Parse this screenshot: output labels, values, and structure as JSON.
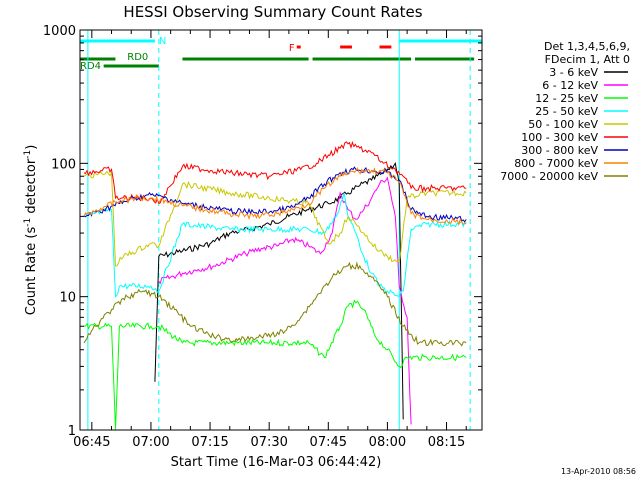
{
  "chart_data": {
    "type": "line",
    "title": "HESSI Observing Summary Count Rates",
    "xlabel": "Start Time (16-Mar-03 06:44:42)",
    "ylabel": "Count Rate (s",
    "ylabel_sup": "-1",
    "ylabel_tail": " detector",
    "ylabel_sup2": "-1",
    "ylabel_close": ")",
    "y_scale": "log",
    "ylim": [
      1,
      1000
    ],
    "xlim": [
      "06:42",
      "08:24"
    ],
    "x_ticks": [
      "06:45",
      "07:00",
      "07:15",
      "07:30",
      "07:45",
      "08:00",
      "08:15"
    ],
    "y_ticks": [
      "1",
      "10",
      "100",
      "1000"
    ],
    "legend_position": "right",
    "legend_header": [
      "Det 1,3,4,5,6,9,",
      "FDecim 1, Att 0"
    ],
    "timestamp": "13-Apr-2010 08:56",
    "flags": [
      {
        "label": "N",
        "color": "#00ffff",
        "segments": [
          [
            "06:42",
            "07:01"
          ],
          [
            "08:03",
            "08:24"
          ]
        ]
      },
      {
        "label": "RD0",
        "color": "#008000",
        "segments": [
          [
            "06:42",
            "06:51"
          ],
          [
            "07:08",
            "07:40"
          ],
          [
            "07:41",
            "08:06"
          ],
          [
            "08:07",
            "08:22"
          ]
        ]
      },
      {
        "label": "RD4",
        "color": "#008000",
        "segments": [
          [
            "06:48",
            "07:02"
          ]
        ]
      },
      {
        "label": "F",
        "color": "#ff0000",
        "segments": [
          [
            "07:37",
            "07:38"
          ],
          [
            "07:48",
            "07:51"
          ],
          [
            "07:58",
            "08:01"
          ]
        ]
      }
    ],
    "vlines": [
      {
        "x": "06:44",
        "color": "#00ffff",
        "style": "solid"
      },
      {
        "x": "07:02",
        "color": "#00ffff",
        "style": "dashed"
      },
      {
        "x": "08:03",
        "color": "#00ffff",
        "style": "solid"
      },
      {
        "x": "08:21",
        "color": "#00ffff",
        "style": "dashed"
      }
    ],
    "series": [
      {
        "name": "3 - 6 keV",
        "color": "#000000",
        "points": [
          [
            "07:01",
            2.3
          ],
          [
            "07:02",
            20
          ],
          [
            "07:08",
            22
          ],
          [
            "07:15",
            25
          ],
          [
            "07:20",
            30
          ],
          [
            "07:25",
            32
          ],
          [
            "07:30",
            35
          ],
          [
            "07:35",
            40
          ],
          [
            "07:40",
            45
          ],
          [
            "07:45",
            50
          ],
          [
            "07:48",
            55
          ],
          [
            "07:50",
            60
          ],
          [
            "07:53",
            68
          ],
          [
            "07:56",
            75
          ],
          [
            "07:59",
            85
          ],
          [
            "08:02",
            100
          ],
          [
            "08:03",
            70
          ],
          [
            "08:04",
            1.2
          ]
        ]
      },
      {
        "name": "6 - 12 keV",
        "color": "#ff00ff",
        "points": [
          [
            "07:02",
            13
          ],
          [
            "07:08",
            15
          ],
          [
            "07:12",
            16
          ],
          [
            "07:16",
            17
          ],
          [
            "07:20",
            19
          ],
          [
            "07:24",
            21
          ],
          [
            "07:28",
            23
          ],
          [
            "07:32",
            24
          ],
          [
            "07:36",
            27
          ],
          [
            "07:40",
            24
          ],
          [
            "07:43",
            21
          ],
          [
            "07:46",
            30
          ],
          [
            "07:48",
            60
          ],
          [
            "07:50",
            45
          ],
          [
            "07:52",
            38
          ],
          [
            "07:54",
            45
          ],
          [
            "07:56",
            55
          ],
          [
            "07:58",
            70
          ],
          [
            "08:00",
            78
          ],
          [
            "08:02",
            40
          ],
          [
            "08:03",
            12
          ],
          [
            "08:05",
            7
          ],
          [
            "08:06",
            1.1
          ]
        ]
      },
      {
        "name": "12 - 25 keV",
        "color": "#00ff00",
        "points": [
          [
            "06:43",
            6
          ],
          [
            "06:50",
            6
          ],
          [
            "06:51",
            1
          ],
          [
            "06:52",
            6
          ],
          [
            "07:00",
            6
          ],
          [
            "07:02",
            6
          ],
          [
            "07:08",
            4.5
          ],
          [
            "07:20",
            4.5
          ],
          [
            "07:30",
            4.5
          ],
          [
            "07:40",
            4.5
          ],
          [
            "07:44",
            3.5
          ],
          [
            "07:48",
            6
          ],
          [
            "07:50",
            8.5
          ],
          [
            "07:52",
            9
          ],
          [
            "07:54",
            8
          ],
          [
            "07:57",
            5
          ],
          [
            "08:00",
            4
          ],
          [
            "08:03",
            3
          ],
          [
            "08:05",
            3.5
          ],
          [
            "08:10",
            3.5
          ],
          [
            "08:20",
            3.5
          ]
        ]
      },
      {
        "name": "25 - 50 keV",
        "color": "#00ffff",
        "points": [
          [
            "06:43",
            40
          ],
          [
            "06:50",
            45
          ],
          [
            "06:51",
            10
          ],
          [
            "06:52",
            12
          ],
          [
            "07:00",
            12
          ],
          [
            "07:02",
            11
          ],
          [
            "07:08",
            35
          ],
          [
            "07:20",
            32
          ],
          [
            "07:30",
            32
          ],
          [
            "07:40",
            32
          ],
          [
            "07:44",
            30
          ],
          [
            "07:47",
            40
          ],
          [
            "07:49",
            60
          ],
          [
            "07:50",
            40
          ],
          [
            "07:52",
            30
          ],
          [
            "07:54",
            20
          ],
          [
            "07:56",
            15
          ],
          [
            "07:58",
            12
          ],
          [
            "08:00",
            11
          ],
          [
            "08:03",
            10
          ],
          [
            "08:04",
            11
          ],
          [
            "08:06",
            32
          ],
          [
            "08:10",
            35
          ],
          [
            "08:20",
            35
          ]
        ]
      },
      {
        "name": "50 - 100 keV",
        "color": "#c8c800",
        "points": [
          [
            "06:43",
            80
          ],
          [
            "06:50",
            85
          ],
          [
            "06:51",
            17
          ],
          [
            "06:53",
            20
          ],
          [
            "07:00",
            25
          ],
          [
            "07:02",
            24
          ],
          [
            "07:08",
            70
          ],
          [
            "07:20",
            60
          ],
          [
            "07:30",
            55
          ],
          [
            "07:40",
            50
          ],
          [
            "07:45",
            25
          ],
          [
            "07:48",
            30
          ],
          [
            "07:50",
            40
          ],
          [
            "07:52",
            35
          ],
          [
            "07:54",
            30
          ],
          [
            "07:56",
            25
          ],
          [
            "07:58",
            22
          ],
          [
            "08:00",
            20
          ],
          [
            "08:03",
            18
          ],
          [
            "08:05",
            55
          ],
          [
            "08:10",
            60
          ],
          [
            "08:20",
            60
          ]
        ]
      },
      {
        "name": "100 - 300 keV",
        "color": "#ff0000",
        "points": [
          [
            "06:43",
            85
          ],
          [
            "06:50",
            90
          ],
          [
            "06:51",
            55
          ],
          [
            "07:00",
            55
          ],
          [
            "07:02",
            50
          ],
          [
            "07:08",
            95
          ],
          [
            "07:20",
            85
          ],
          [
            "07:30",
            80
          ],
          [
            "07:38",
            90
          ],
          [
            "07:42",
            100
          ],
          [
            "07:45",
            115
          ],
          [
            "07:48",
            130
          ],
          [
            "07:50",
            140
          ],
          [
            "07:53",
            130
          ],
          [
            "07:56",
            120
          ],
          [
            "07:59",
            100
          ],
          [
            "08:02",
            90
          ],
          [
            "08:04",
            80
          ],
          [
            "08:06",
            65
          ],
          [
            "08:10",
            65
          ],
          [
            "08:20",
            65
          ]
        ]
      },
      {
        "name": "300 - 800 keV",
        "color": "#0000c0",
        "points": [
          [
            "06:43",
            40
          ],
          [
            "06:48",
            45
          ],
          [
            "06:52",
            50
          ],
          [
            "06:56",
            55
          ],
          [
            "07:00",
            58
          ],
          [
            "07:04",
            55
          ],
          [
            "07:08",
            50
          ],
          [
            "07:14",
            47
          ],
          [
            "07:20",
            44
          ],
          [
            "07:26",
            43
          ],
          [
            "07:32",
            44
          ],
          [
            "07:36",
            47
          ],
          [
            "07:40",
            55
          ],
          [
            "07:44",
            70
          ],
          [
            "07:48",
            85
          ],
          [
            "07:52",
            90
          ],
          [
            "07:56",
            88
          ],
          [
            "08:00",
            85
          ],
          [
            "08:03",
            75
          ],
          [
            "08:06",
            45
          ],
          [
            "08:10",
            40
          ],
          [
            "08:20",
            38
          ]
        ]
      },
      {
        "name": "800 - 7000 keV",
        "color": "#ff8000",
        "points": [
          [
            "06:43",
            40
          ],
          [
            "06:48",
            47
          ],
          [
            "06:52",
            52
          ],
          [
            "06:56",
            55
          ],
          [
            "07:00",
            55
          ],
          [
            "07:04",
            52
          ],
          [
            "07:08",
            48
          ],
          [
            "07:14",
            45
          ],
          [
            "07:20",
            42
          ],
          [
            "07:26",
            40
          ],
          [
            "07:32",
            42
          ],
          [
            "07:36",
            45
          ],
          [
            "07:40",
            50
          ],
          [
            "07:44",
            65
          ],
          [
            "07:48",
            80
          ],
          [
            "07:52",
            88
          ],
          [
            "07:56",
            88
          ],
          [
            "08:00",
            85
          ],
          [
            "08:03",
            72
          ],
          [
            "08:06",
            42
          ],
          [
            "08:10",
            38
          ],
          [
            "08:20",
            36
          ]
        ]
      },
      {
        "name": "7000 - 20000 keV",
        "color": "#808000",
        "points": [
          [
            "06:43",
            4.5
          ],
          [
            "06:46",
            6
          ],
          [
            "06:50",
            8
          ],
          [
            "06:54",
            10
          ],
          [
            "06:58",
            11
          ],
          [
            "07:02",
            10
          ],
          [
            "07:06",
            8
          ],
          [
            "07:10",
            6
          ],
          [
            "07:16",
            5
          ],
          [
            "07:22",
            4.7
          ],
          [
            "07:28",
            5
          ],
          [
            "07:34",
            5.5
          ],
          [
            "07:38",
            7
          ],
          [
            "07:42",
            10
          ],
          [
            "07:46",
            14
          ],
          [
            "07:50",
            17
          ],
          [
            "07:53",
            17
          ],
          [
            "07:56",
            14
          ],
          [
            "08:00",
            10
          ],
          [
            "08:04",
            6
          ],
          [
            "08:08",
            4.5
          ],
          [
            "08:20",
            4.5
          ]
        ]
      }
    ]
  }
}
